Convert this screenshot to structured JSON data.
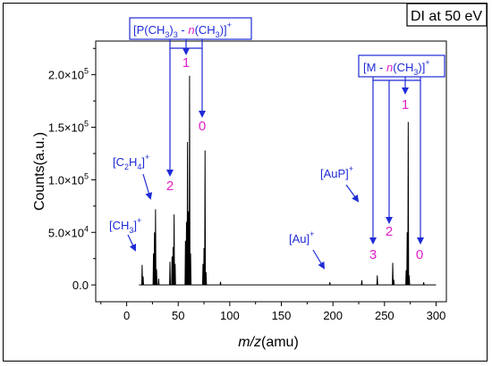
{
  "chart_data": {
    "type": "line",
    "title": "DI at 50 eV",
    "xlabel_italic": "m/z",
    "xlabel_unit": "(amu)",
    "ylabel": "Counts(a.u.)",
    "xlim": [
      -30,
      310
    ],
    "ylim": [
      -16000,
      232000
    ],
    "x_ticks": [
      0,
      50,
      100,
      150,
      200,
      250,
      300
    ],
    "y_ticks": [
      {
        "value": 0,
        "label": "0.0"
      },
      {
        "value": 50000,
        "mant": "5.0",
        "exp": "4"
      },
      {
        "value": 100000,
        "mant": "1.0",
        "exp": "5"
      },
      {
        "value": 150000,
        "mant": "1.5",
        "exp": "5"
      },
      {
        "value": 200000,
        "mant": "2.0",
        "exp": "5"
      }
    ],
    "peaks": [
      {
        "x": 15,
        "y": 19000
      },
      {
        "x": 16,
        "y": 8000
      },
      {
        "x": 26,
        "y": 30000
      },
      {
        "x": 27,
        "y": 50000
      },
      {
        "x": 28,
        "y": 72000
      },
      {
        "x": 29,
        "y": 15000
      },
      {
        "x": 31,
        "y": 6000
      },
      {
        "x": 42,
        "y": 22000
      },
      {
        "x": 44,
        "y": 27000
      },
      {
        "x": 45,
        "y": 36000
      },
      {
        "x": 46,
        "y": 67000
      },
      {
        "x": 47,
        "y": 20000
      },
      {
        "x": 57,
        "y": 42000
      },
      {
        "x": 58,
        "y": 60000
      },
      {
        "x": 59,
        "y": 136000
      },
      {
        "x": 60,
        "y": 70000
      },
      {
        "x": 61,
        "y": 199000
      },
      {
        "x": 62,
        "y": 30000
      },
      {
        "x": 74,
        "y": 20000
      },
      {
        "x": 75,
        "y": 35000
      },
      {
        "x": 76,
        "y": 128000
      },
      {
        "x": 77,
        "y": 12000
      },
      {
        "x": 91,
        "y": 3000
      },
      {
        "x": 197,
        "y": 2500
      },
      {
        "x": 228,
        "y": 4500
      },
      {
        "x": 243,
        "y": 9000
      },
      {
        "x": 258,
        "y": 21000
      },
      {
        "x": 259,
        "y": 5000
      },
      {
        "x": 271,
        "y": 14000
      },
      {
        "x": 272,
        "y": 50000
      },
      {
        "x": 273,
        "y": 155000
      },
      {
        "x": 274,
        "y": 9000
      },
      {
        "x": 288,
        "y": 2500
      }
    ],
    "annotations": {
      "ch3": {
        "text": "[CH",
        "sub": "3",
        "close": "]",
        "sup": "+"
      },
      "c2h4": {
        "text": "[C",
        "sub1": "2",
        "mid": "H",
        "sub2": "4",
        "close": "]",
        "sup": "+"
      },
      "au": {
        "text": "[Au]",
        "sup": "+"
      },
      "aup": {
        "text": "[AuP]",
        "sup": "+"
      },
      "pch3": {
        "p1": "[P(CH",
        "s1": "3",
        "p2": ")",
        "s2": "3",
        "p3": " - ",
        "n": "n",
        "p4": "(CH",
        "s3": "3",
        "p5": ")]",
        "sup": "+"
      },
      "mch3": {
        "p1": "[M - ",
        "n": "n",
        "p2": "(CH",
        "s1": "3",
        "p3": ")]",
        "sup": "+"
      },
      "p_labels": [
        "2",
        "1",
        "0"
      ],
      "m_labels": [
        "3",
        "2",
        "1",
        "0"
      ]
    },
    "colors": {
      "trace": "#000000",
      "arrow": "#1f2bd6",
      "box": "#1f2bd6",
      "number": "#e020c8"
    }
  }
}
